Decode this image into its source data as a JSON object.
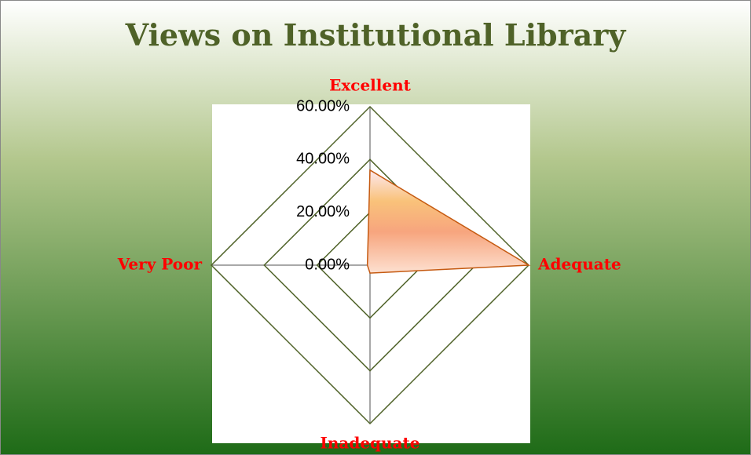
{
  "chart_data": {
    "type": "radar",
    "title": "Views on Institutional Library",
    "categories": [
      "Excellent",
      "Adequate",
      "Inadequate",
      "Very Poor"
    ],
    "values": [
      36,
      60,
      3,
      1
    ],
    "color": "#c55a11",
    "ylim": [
      0,
      60
    ],
    "yticks": [
      {
        "value": 0,
        "label": "0.00%"
      },
      {
        "value": 20,
        "label": "20.00%"
      },
      {
        "value": 40,
        "label": "40.00%"
      },
      {
        "value": 60,
        "label": "60.00%"
      }
    ],
    "grid": true
  }
}
